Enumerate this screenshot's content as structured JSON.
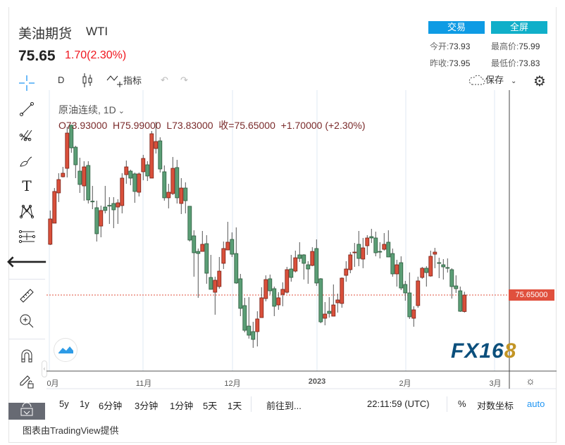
{
  "header": {
    "title": "美油期货",
    "symbol": "WTI",
    "price": "75.65",
    "change": "1.70(2.30%)",
    "trade_button": "交易",
    "fullscreen_button": "全屏"
  },
  "stats": {
    "open_label": "今开:",
    "open": "73.93",
    "high_label": "最高价:",
    "high": "75.99",
    "prev_label": "昨收:",
    "prev": "73.95",
    "low_label": "最低价:",
    "low": "73.83"
  },
  "toolbar": {
    "interval": "D",
    "indicators": "指标",
    "save": "保存"
  },
  "legend": {
    "name": "原油连续, 1D",
    "ohlc": "O73.93000  H75.99000  L73.83000  收=75.65000  +1.70000 (+2.30%)"
  },
  "price_label": "75.65000",
  "xaxis": [
    "0月",
    "11月",
    "12月",
    "2023",
    "2月",
    "3月"
  ],
  "bottom": {
    "ranges": [
      "5y",
      "1y",
      "6分钟",
      "3分钟",
      "1分钟",
      "5天",
      "1天"
    ],
    "goto": "前往到...",
    "time": "22:11:59 (UTC)",
    "percent": "%",
    "log": "对数坐标",
    "auto": "auto"
  },
  "footer": "图表由TradingView提供",
  "logo": "FX168",
  "colors": {
    "up": "#d9503b",
    "down": "#5b9e76",
    "accent": "#0e9be4"
  },
  "chart_data": {
    "type": "candlestick",
    "last": 75.65,
    "ohlc": [
      [
        80.93,
        84.45,
        80.85,
        83.57
      ],
      [
        83.13,
        86.79,
        83.13,
        86.43
      ],
      [
        86.28,
        88.33,
        85.33,
        87.67
      ],
      [
        87.96,
        88.99,
        87.89,
        88.33
      ],
      [
        88.84,
        93.17,
        87.89,
        92.51
      ],
      [
        93.32,
        93.39,
        90.46,
        90.97
      ],
      [
        91.04,
        91.19,
        87.82,
        89.21
      ],
      [
        88.55,
        89.94,
        86.28,
        87.16
      ],
      [
        87.01,
        89.58,
        85.47,
        88.99
      ],
      [
        89.14,
        89.58,
        85.18,
        85.55
      ],
      [
        85.42,
        87.01,
        84.59,
        85.38
      ],
      [
        84.74,
        85.47,
        81.22,
        82.03
      ],
      [
        82.83,
        84.96,
        81.66,
        84.45
      ],
      [
        84.81,
        87.01,
        84.15,
        84.45
      ],
      [
        84.98,
        85.84,
        83.05,
        84.94
      ],
      [
        85.18,
        85.84,
        82.61,
        84.52
      ],
      [
        84.81,
        85.62,
        83.05,
        85.25
      ],
      [
        84.96,
        88.33,
        84.15,
        87.82
      ],
      [
        88.18,
        89.65,
        87.23,
        88.99
      ],
      [
        88.55,
        88.7,
        87.08,
        87.82
      ],
      [
        88.26,
        88.4,
        85.25,
        86.43
      ],
      [
        86.35,
        88.4,
        85.91,
        88.26
      ],
      [
        88.48,
        90.24,
        87.6,
        89.87
      ],
      [
        89.21,
        89.58,
        87.52,
        88.04
      ],
      [
        87.82,
        92.73,
        87.82,
        92.44
      ],
      [
        90.9,
        93.68,
        90.38,
        91.63
      ],
      [
        91.7,
        92.07,
        88.4,
        88.77
      ],
      [
        88.48,
        89.14,
        85.47,
        85.77
      ],
      [
        85.77,
        87.23,
        84.67,
        86.35
      ],
      [
        86.21,
        90.02,
        86.06,
        88.84
      ],
      [
        88.92,
        89.72,
        85.18,
        85.77
      ],
      [
        85.18,
        87.82,
        84.08,
        86.79
      ],
      [
        86.79,
        87.38,
        84.15,
        85.47
      ],
      [
        84.89,
        84.89,
        81.22,
        81.37
      ],
      [
        81.81,
        82.39,
        77.56,
        80.05
      ],
      [
        80.19,
        80.49,
        75.36,
        79.97
      ],
      [
        80.19,
        82.32,
        80.19,
        80.93
      ],
      [
        81.0,
        81.88,
        76.82,
        77.92
      ],
      [
        77.48,
        79.83,
        76.24,
        76.24
      ],
      [
        75.94,
        77.56,
        73.6,
        77.19
      ],
      [
        76.53,
        79.61,
        76.31,
        78.14
      ],
      [
        78.95,
        81.22,
        78.36,
        80.49
      ],
      [
        80.34,
        83.27,
        80.34,
        81.15
      ],
      [
        81.44,
        82.17,
        79.61,
        79.9
      ],
      [
        79.97,
        82.69,
        76.82,
        76.9
      ],
      [
        77.34,
        77.85,
        73.45,
        74.26
      ],
      [
        74.55,
        75.36,
        71.77,
        71.98
      ],
      [
        72.42,
        75.43,
        71.11,
        71.47
      ],
      [
        71.84,
        72.86,
        70.15,
        71.03
      ],
      [
        71.84,
        73.96,
        70.3,
        73.16
      ],
      [
        73.3,
        76.46,
        73.3,
        75.36
      ],
      [
        75.28,
        77.7,
        74.99,
        77.26
      ],
      [
        77.34,
        77.78,
        75.72,
        76.09
      ],
      [
        76.31,
        76.53,
        73.45,
        74.48
      ],
      [
        74.62,
        75.94,
        74.11,
        75.36
      ],
      [
        75.72,
        76.97,
        74.48,
        76.24
      ],
      [
        75.94,
        78.58,
        75.8,
        78.29
      ],
      [
        78.36,
        79.83,
        77.04,
        77.48
      ],
      [
        78.14,
        80.27,
        78.0,
        79.53
      ],
      [
        79.83,
        81.15,
        79.1,
        79.46
      ],
      [
        79.83,
        79.9,
        77.26,
        78.95
      ],
      [
        78.8,
        79.17,
        76.82,
        78.36
      ],
      [
        78.73,
        80.63,
        78.65,
        80.19
      ],
      [
        80.49,
        81.44,
        76.6,
        76.9
      ],
      [
        77.34,
        77.41,
        72.72,
        72.86
      ],
      [
        73.23,
        74.92,
        72.5,
        73.67
      ],
      [
        73.96,
        75.43,
        73.3,
        73.74
      ],
      [
        73.45,
        76.75,
        73.45,
        74.62
      ],
      [
        74.84,
        75.8,
        73.82,
        75.14
      ],
      [
        74.77,
        77.48,
        74.33,
        77.41
      ],
      [
        77.7,
        79.17,
        77.04,
        78.36
      ],
      [
        78.29,
        80.12,
        77.92,
        79.83
      ],
      [
        80.09,
        81.07,
        78.58,
        80.12
      ],
      [
        80.93,
        82.32,
        78.65,
        79.46
      ],
      [
        79.39,
        81.59,
        78.44,
        80.56
      ],
      [
        80.78,
        81.88,
        79.83,
        81.59
      ],
      [
        81.73,
        82.54,
        81.07,
        81.59
      ],
      [
        81.59,
        82.25,
        79.68,
        80.05
      ],
      [
        80.19,
        81.15,
        79.46,
        80.12
      ],
      [
        80.41,
        82.1,
        80.27,
        80.93
      ],
      [
        81.15,
        82.39,
        79.61,
        79.61
      ],
      [
        79.97,
        80.49,
        77.56,
        77.85
      ],
      [
        77.85,
        79.32,
        76.53,
        78.8
      ],
      [
        79.02,
        79.68,
        76.16,
        76.38
      ],
      [
        76.75,
        77.12,
        75.06,
        75.87
      ],
      [
        75.87,
        78.0,
        73.16,
        73.38
      ],
      [
        73.23,
        74.48,
        72.35,
        74.11
      ],
      [
        74.55,
        77.56,
        74.33,
        77.12
      ],
      [
        77.48,
        78.58,
        77.34,
        78.44
      ],
      [
        78.44,
        78.65,
        76.53,
        77.99
      ],
      [
        77.63,
        80.27,
        77.56,
        79.68
      ],
      [
        79.9,
        80.56,
        78.44,
        80.12
      ],
      [
        79.02,
        79.53,
        77.41,
        78.98
      ],
      [
        78.8,
        79.39,
        77.26,
        78.58
      ],
      [
        78.51,
        79.46,
        77.99,
        78.44
      ],
      [
        78.29,
        78.44,
        75.28,
        76.53
      ],
      [
        76.6,
        77.7,
        75.87,
        76.31
      ],
      [
        76.09,
        76.53,
        73.89,
        73.96
      ],
      [
        73.93,
        75.99,
        73.83,
        75.65
      ]
    ]
  }
}
